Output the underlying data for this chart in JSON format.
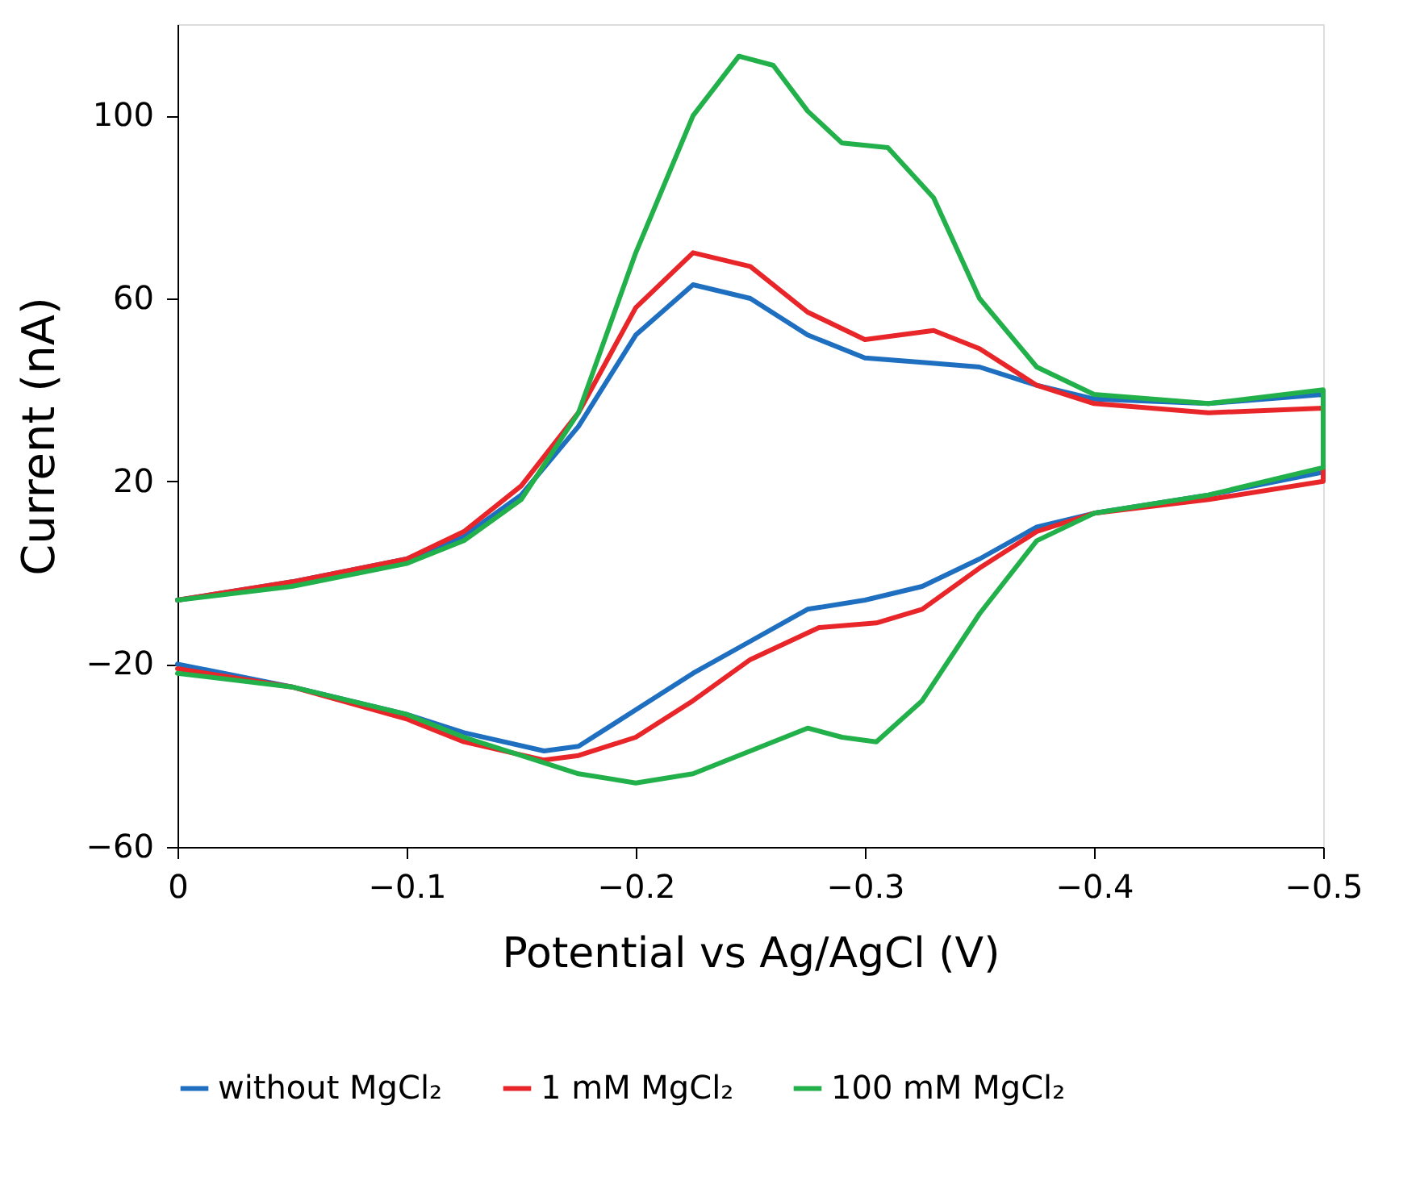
{
  "chart_data": {
    "type": "line",
    "xlabel": "Potential vs Ag/AgCl (V)",
    "ylabel": "Current (nA)",
    "xlim": [
      0,
      -0.5
    ],
    "xticks": [
      0,
      -0.1,
      -0.2,
      -0.3,
      -0.4,
      -0.5
    ],
    "ylim": [
      -60,
      120
    ],
    "yticks": [
      -60,
      -20,
      20,
      60,
      100
    ],
    "grid": false,
    "legend": "bottom",
    "series": [
      {
        "name": "without MgCl₂",
        "color": "#1f6fc0",
        "x": [
          0,
          -0.05,
          -0.1,
          -0.125,
          -0.15,
          -0.175,
          -0.2,
          -0.225,
          -0.25,
          -0.275,
          -0.3,
          -0.325,
          -0.35,
          -0.375,
          -0.4,
          -0.45,
          -0.5,
          -0.5,
          -0.45,
          -0.4,
          -0.375,
          -0.35,
          -0.325,
          -0.3,
          -0.275,
          -0.25,
          -0.225,
          -0.2,
          -0.175,
          -0.16,
          -0.125,
          -0.1,
          -0.05,
          0
        ],
        "values": [
          -6,
          -2,
          3,
          8,
          17,
          32,
          52,
          63,
          60,
          52,
          47,
          46,
          45,
          41,
          38,
          37,
          39,
          22,
          17,
          13,
          10,
          3,
          -3,
          -6,
          -8,
          -15,
          -22,
          -30,
          -38,
          -39,
          -35,
          -31,
          -25,
          -20
        ]
      },
      {
        "name": "1 mM MgCl₂",
        "color": "#e8262a",
        "x": [
          0,
          -0.05,
          -0.1,
          -0.125,
          -0.15,
          -0.175,
          -0.2,
          -0.225,
          -0.25,
          -0.275,
          -0.3,
          -0.33,
          -0.35,
          -0.375,
          -0.4,
          -0.45,
          -0.5,
          -0.5,
          -0.45,
          -0.4,
          -0.375,
          -0.35,
          -0.325,
          -0.305,
          -0.28,
          -0.25,
          -0.225,
          -0.2,
          -0.175,
          -0.16,
          -0.125,
          -0.1,
          -0.05,
          0
        ],
        "values": [
          -6,
          -2,
          3,
          9,
          19,
          35,
          58,
          70,
          67,
          57,
          51,
          53,
          49,
          41,
          37,
          35,
          36,
          20,
          16,
          13,
          9,
          1,
          -8,
          -11,
          -12,
          -19,
          -28,
          -36,
          -40,
          -41,
          -37,
          -32,
          -25,
          -21
        ]
      },
      {
        "name": "100 mM MgCl₂",
        "color": "#22b04b",
        "x": [
          0,
          -0.05,
          -0.1,
          -0.125,
          -0.15,
          -0.175,
          -0.2,
          -0.225,
          -0.245,
          -0.26,
          -0.275,
          -0.29,
          -0.31,
          -0.33,
          -0.35,
          -0.375,
          -0.4,
          -0.45,
          -0.5,
          -0.5,
          -0.45,
          -0.4,
          -0.375,
          -0.35,
          -0.325,
          -0.305,
          -0.29,
          -0.275,
          -0.25,
          -0.225,
          -0.2,
          -0.175,
          -0.15,
          -0.125,
          -0.1,
          -0.05,
          0
        ],
        "values": [
          -6,
          -3,
          2,
          7,
          16,
          35,
          70,
          100,
          113,
          111,
          101,
          94,
          93,
          82,
          60,
          45,
          39,
          37,
          40,
          23,
          17,
          13,
          7,
          -9,
          -28,
          -37,
          -36,
          -34,
          -39,
          -44,
          -46,
          -44,
          -40,
          -36,
          -31,
          -25,
          -22
        ]
      }
    ]
  }
}
